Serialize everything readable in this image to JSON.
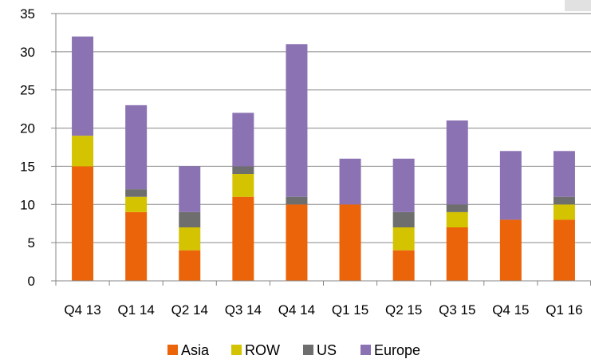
{
  "chart_data": {
    "type": "bar",
    "stacked": true,
    "categories": [
      "Q4 13",
      "Q1 14",
      "Q2 14",
      "Q3 14",
      "Q4 14",
      "Q1 15",
      "Q2 15",
      "Q3 15",
      "Q4 15",
      "Q1 16"
    ],
    "series": [
      {
        "name": "Asia",
        "color": "#ec6409",
        "values": [
          15,
          9,
          4,
          11,
          10,
          10,
          4,
          7,
          8,
          8
        ]
      },
      {
        "name": "ROW",
        "color": "#d4c300",
        "values": [
          4,
          2,
          3,
          3,
          0,
          0,
          3,
          2,
          0,
          2
        ]
      },
      {
        "name": "US",
        "color": "#6e6e6e",
        "values": [
          0,
          1,
          2,
          1,
          1,
          0,
          2,
          1,
          0,
          1
        ]
      },
      {
        "name": "Europe",
        "color": "#8b73b3",
        "values": [
          13,
          11,
          6,
          7,
          20,
          6,
          7,
          11,
          9,
          6
        ]
      }
    ],
    "ylim": [
      0,
      35
    ],
    "yticks": [
      "0",
      "5",
      "10",
      "15",
      "20",
      "25",
      "30",
      "35"
    ],
    "grid": true,
    "legend_position": "bottom"
  }
}
